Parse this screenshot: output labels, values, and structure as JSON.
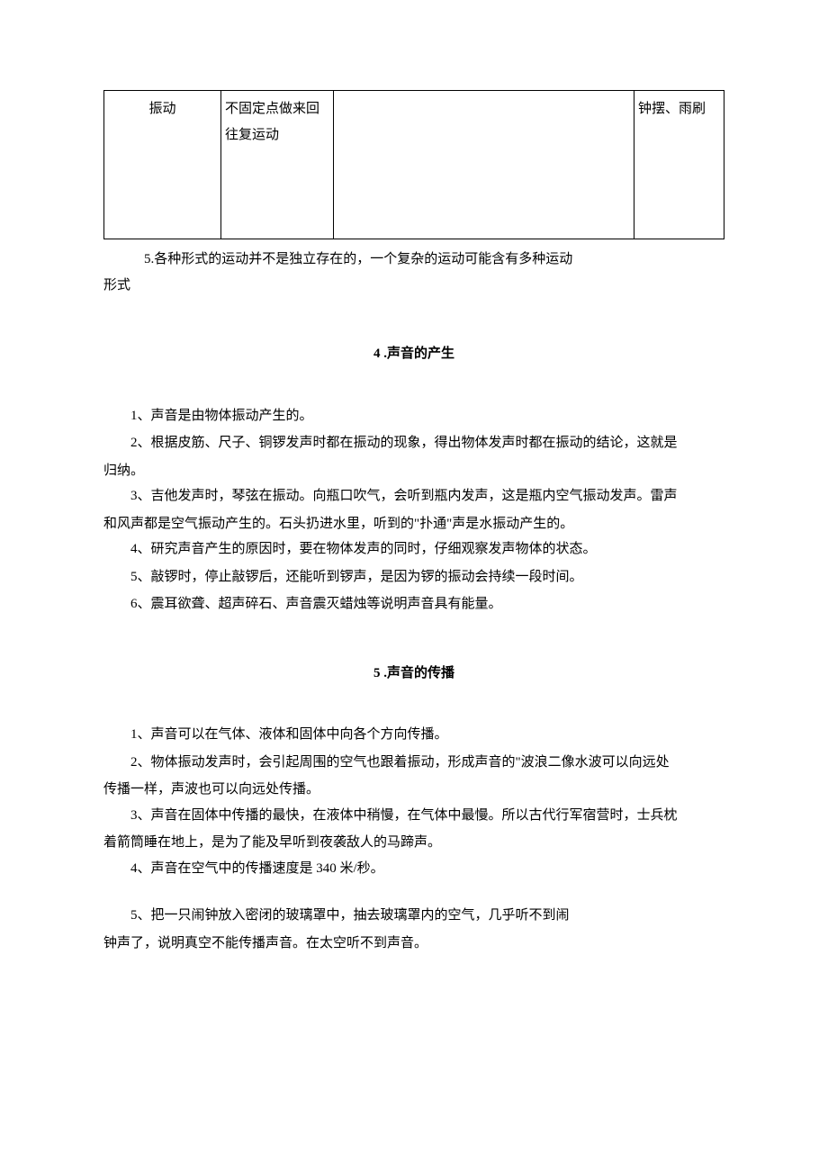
{
  "table": {
    "row": {
      "c1": "振动",
      "c2": "不固定点做来回往复运动",
      "c3": "",
      "c4": "钟摆、雨刷"
    }
  },
  "afterTable": {
    "note": "5.各种形式的运动并不是独立存在的，一个复杂的运动可能含有多种运动",
    "noteCont": "形式"
  },
  "section4": {
    "title": "4 .声音的产生",
    "p1": "1、声音是由物体振动产生的。",
    "p2a": "2、根据皮筋、尺子、铜锣发声时都在振动的现象，得出物体发声时都在振动的结论，这就是",
    "p2b": "归纳。",
    "p3a": "3、吉他发声时，琴弦在振动。向瓶口吹气，会听到瓶内发声，这是瓶内空气振动发声。雷声",
    "p3b": "和风声都是空气振动产生的。石头扔进水里，听到的\"扑通\"声是水振动产生的。",
    "p4": "4、研究声音产生的原因时，要在物体发声的同时，仔细观察发声物体的状态。",
    "p5": "5、敲锣时，停止敲锣后，还能听到锣声，是因为锣的振动会持续一段时间。",
    "p6": "6、震耳欲聋、超声碎石、声音震灭蜡烛等说明声音具有能量。"
  },
  "section5": {
    "title": "5 .声音的传播",
    "p1": "1、声音可以在气体、液体和固体中向各个方向传播。",
    "p2a": "2、物体振动发声时，会引起周围的空气也跟着振动，形成声音的\"波浪二像水波可以向远处",
    "p2b": "传播一样，声波也可以向远处传播。",
    "p3a": "3、声音在固体中传播的最快，在液体中稍慢，在气体中最慢。所以古代行军宿营时，士兵枕",
    "p3b": "着箭筒睡在地上，是为了能及早听到夜袭敌人的马蹄声。",
    "p4": "4、声音在空气中的传播速度是 340 米/秒。",
    "p5a": "5、把一只闹钟放入密闭的玻璃罩中，抽去玻璃罩内的空气，几乎听不到闹",
    "p5b": "钟声了，说明真空不能传播声音。在太空听不到声音。"
  }
}
